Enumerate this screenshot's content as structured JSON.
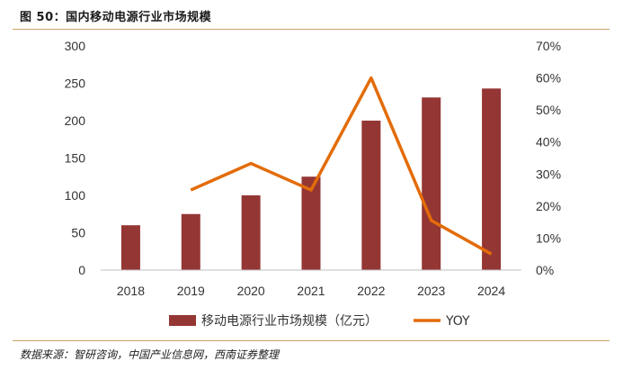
{
  "page": {
    "title": "图 50：国内移动电源行业市场规模",
    "source": "数据来源：智研咨询，中国产业信息网，西南证券整理"
  },
  "chart_data": {
    "type": "bar",
    "categories": [
      "2018",
      "2019",
      "2020",
      "2021",
      "2022",
      "2023",
      "2024"
    ],
    "series": [
      {
        "name": "移动电源行业市场规模（亿元）",
        "kind": "bar",
        "axis": "left",
        "values": [
          60,
          75,
          100,
          125,
          200,
          231,
          243
        ],
        "color": "#943634"
      },
      {
        "name": "YOY",
        "kind": "line",
        "axis": "right",
        "values": [
          null,
          0.25,
          0.333,
          0.25,
          0.6,
          0.155,
          0.05
        ],
        "color": "#e36c09"
      }
    ],
    "y_left": {
      "ylim": [
        0,
        300
      ],
      "ticks": [
        "0",
        "50",
        "100",
        "150",
        "200",
        "250",
        "300"
      ]
    },
    "y_right": {
      "ylim": [
        0,
        0.7
      ],
      "ticks": [
        "0%",
        "10%",
        "20%",
        "30%",
        "40%",
        "50%",
        "60%",
        "70%"
      ]
    },
    "legend_position": "bottom",
    "grid": false
  }
}
